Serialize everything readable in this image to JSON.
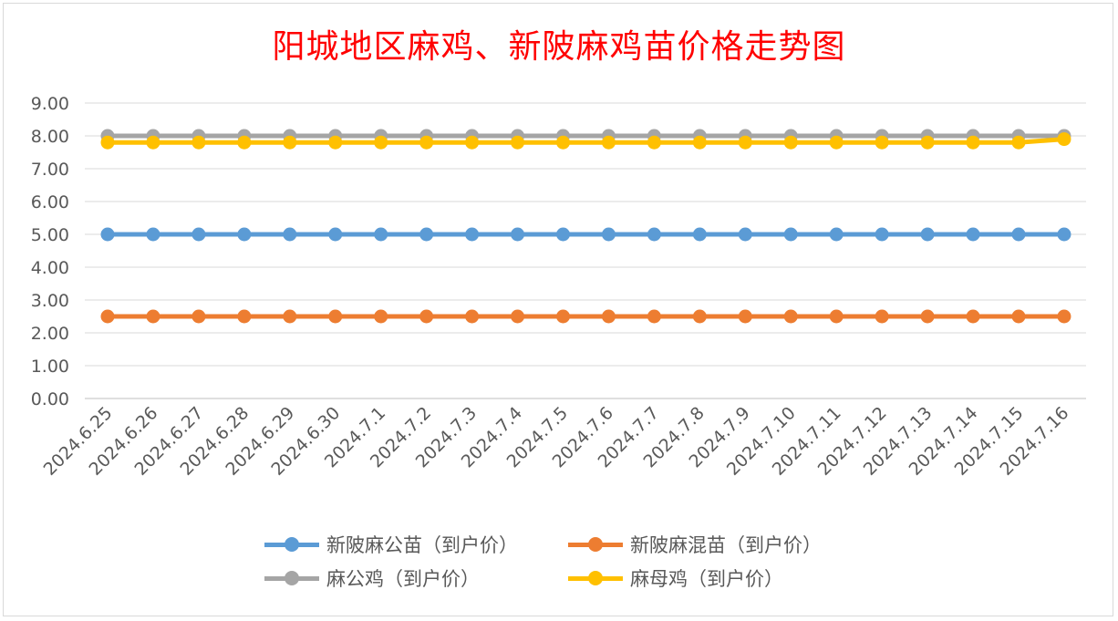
{
  "chart_data": {
    "type": "line",
    "title": "阳城地区麻鸡、新陂麻鸡苗价格走势图",
    "xlabel": "",
    "ylabel": "",
    "ylim": [
      0,
      9
    ],
    "ytick_labels": [
      "0.00",
      "1.00",
      "2.00",
      "3.00",
      "4.00",
      "5.00",
      "6.00",
      "7.00",
      "8.00",
      "9.00"
    ],
    "categories": [
      "2024.6.25",
      "2024.6.26",
      "2024.6.27",
      "2024.6.28",
      "2024.6.29",
      "2024.6.30",
      "2024.7.1",
      "2024.7.2",
      "2024.7.3",
      "2024.7.4",
      "2024.7.5",
      "2024.7.6",
      "2024.7.7",
      "2024.7.8",
      "2024.7.9",
      "2024.7.10",
      "2024.7.11",
      "2024.7.12",
      "2024.7.13",
      "2024.7.14",
      "2024.7.15",
      "2024.7.16"
    ],
    "grid": true,
    "legend_position": "bottom",
    "series": [
      {
        "name": "新陂麻公苗（到户价）",
        "color": "#5b9bd5",
        "values": [
          5,
          5,
          5,
          5,
          5,
          5,
          5,
          5,
          5,
          5,
          5,
          5,
          5,
          5,
          5,
          5,
          5,
          5,
          5,
          5,
          5,
          5
        ]
      },
      {
        "name": "新陂麻混苗（到户价）",
        "color": "#ed7d31",
        "values": [
          2.5,
          2.5,
          2.5,
          2.5,
          2.5,
          2.5,
          2.5,
          2.5,
          2.5,
          2.5,
          2.5,
          2.5,
          2.5,
          2.5,
          2.5,
          2.5,
          2.5,
          2.5,
          2.5,
          2.5,
          2.5,
          2.5
        ]
      },
      {
        "name": "麻公鸡（到户价）",
        "color": "#a5a5a5",
        "values": [
          8,
          8,
          8,
          8,
          8,
          8,
          8,
          8,
          8,
          8,
          8,
          8,
          8,
          8,
          8,
          8,
          8,
          8,
          8,
          8,
          8,
          8
        ]
      },
      {
        "name": "麻母鸡（到户价）",
        "color": "#ffc000",
        "values": [
          7.8,
          7.8,
          7.8,
          7.8,
          7.8,
          7.8,
          7.8,
          7.8,
          7.8,
          7.8,
          7.8,
          7.8,
          7.8,
          7.8,
          7.8,
          7.8,
          7.8,
          7.8,
          7.8,
          7.8,
          7.8,
          7.9
        ]
      }
    ]
  }
}
